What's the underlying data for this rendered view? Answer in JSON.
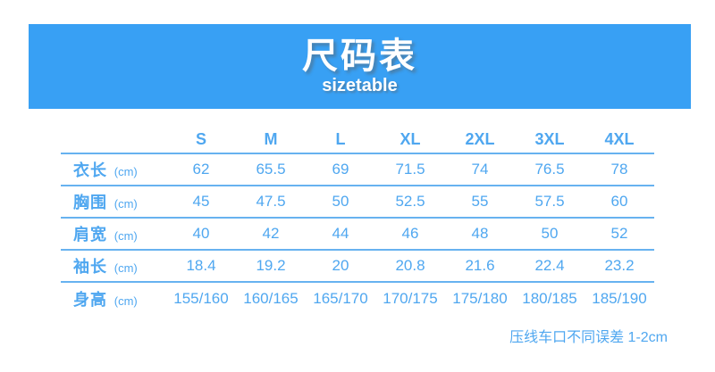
{
  "banner": {
    "title": "尺码表",
    "subtitle": "sizetable",
    "bg_color": "#38a0f4",
    "text_color": "#ffffff"
  },
  "table": {
    "columns": [
      "S",
      "M",
      "L",
      "XL",
      "2XL",
      "3XL",
      "4XL"
    ],
    "rows": [
      {
        "label": "衣长",
        "unit": "(cm)",
        "values": [
          "62",
          "65.5",
          "69",
          "71.5",
          "74",
          "76.5",
          "78"
        ]
      },
      {
        "label": "胸围",
        "unit": "(cm)",
        "values": [
          "45",
          "47.5",
          "50",
          "52.5",
          "55",
          "57.5",
          "60"
        ]
      },
      {
        "label": "肩宽",
        "unit": "(cm)",
        "values": [
          "40",
          "42",
          "44",
          "46",
          "48",
          "50",
          "52"
        ]
      },
      {
        "label": "袖长",
        "unit": "(cm)",
        "values": [
          "18.4",
          "19.2",
          "20",
          "20.8",
          "21.6",
          "22.4",
          "23.2"
        ]
      },
      {
        "label": "身高",
        "unit": "(cm)",
        "values": [
          "155/160",
          "160/165",
          "165/170",
          "170/175",
          "175/180",
          "180/185",
          "185/190"
        ]
      }
    ],
    "text_color": "#4fa7f0",
    "line_color": "#67b2f0"
  },
  "footnote": "压线车口不同误差 1-2cm",
  "chart_data": {
    "type": "table",
    "title": "尺码表",
    "subtitle": "sizetable",
    "columns": [
      "S",
      "M",
      "L",
      "XL",
      "2XL",
      "3XL",
      "4XL"
    ],
    "rows": [
      {
        "label": "衣长(cm)",
        "values": [
          62,
          65.5,
          69,
          71.5,
          74,
          76.5,
          78
        ]
      },
      {
        "label": "胸围(cm)",
        "values": [
          45,
          47.5,
          50,
          52.5,
          55,
          57.5,
          60
        ]
      },
      {
        "label": "肩宽(cm)",
        "values": [
          40,
          42,
          44,
          46,
          48,
          50,
          52
        ]
      },
      {
        "label": "袖长(cm)",
        "values": [
          18.4,
          19.2,
          20,
          20.8,
          21.6,
          22.4,
          23.2
        ]
      },
      {
        "label": "身高(cm)",
        "values": [
          "155/160",
          "160/165",
          "165/170",
          "170/175",
          "175/180",
          "180/185",
          "185/190"
        ]
      }
    ],
    "note": "压线车口不同误差 1-2cm"
  }
}
